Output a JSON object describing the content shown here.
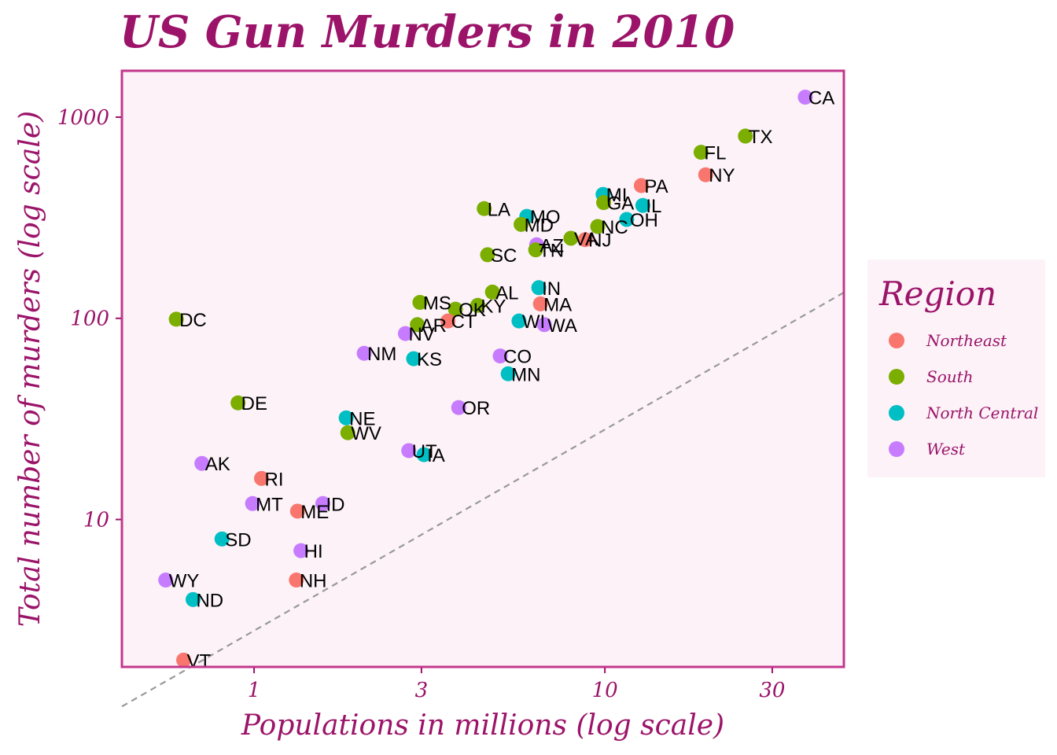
{
  "chart_data": {
    "type": "scatter",
    "title": "US Gun Murders in 2010",
    "xlabel": "Populations in millions (log scale)",
    "ylabel": "Total number of murders (log scale)",
    "x_scale": "log10",
    "y_scale": "log10",
    "xlim": [
      0.42,
      48
    ],
    "ylim": [
      1.85,
      1700
    ],
    "x_ticks": [
      1,
      3,
      10,
      30
    ],
    "x_tick_labels": [
      "1",
      "3",
      "10",
      "30"
    ],
    "y_ticks": [
      10,
      100,
      1000
    ],
    "y_tick_labels": [
      "10",
      "100",
      "1000"
    ],
    "grid": false,
    "trend_line": {
      "style": "dashed",
      "color": "#999999",
      "rate_per_million": 2.8
    },
    "legend": {
      "title": "Region",
      "position": "right",
      "entries": [
        {
          "label": "Northeast",
          "color": "#F8766D"
        },
        {
          "label": "South",
          "color": "#7CAE00"
        },
        {
          "label": "North Central",
          "color": "#00BFC4"
        },
        {
          "label": "West",
          "color": "#C77CFF"
        }
      ]
    },
    "region_colors": {
      "Northeast": "#F8766D",
      "South": "#7CAE00",
      "North Central": "#00BFC4",
      "West": "#C77CFF"
    },
    "points": [
      {
        "label": "CA",
        "region": "West",
        "population": 37.25,
        "murders": 1257
      },
      {
        "label": "TX",
        "region": "South",
        "population": 25.15,
        "murders": 805
      },
      {
        "label": "FL",
        "region": "South",
        "population": 18.8,
        "murders": 669
      },
      {
        "label": "NY",
        "region": "Northeast",
        "population": 19.38,
        "murders": 517
      },
      {
        "label": "PA",
        "region": "Northeast",
        "population": 12.7,
        "murders": 457
      },
      {
        "label": "MI",
        "region": "North Central",
        "population": 9.88,
        "murders": 413
      },
      {
        "label": "GA",
        "region": "South",
        "population": 9.92,
        "murders": 376
      },
      {
        "label": "IL",
        "region": "North Central",
        "population": 12.83,
        "murders": 364
      },
      {
        "label": "OH",
        "region": "North Central",
        "population": 11.54,
        "murders": 310
      },
      {
        "label": "LA",
        "region": "South",
        "population": 4.53,
        "murders": 351
      },
      {
        "label": "MO",
        "region": "North Central",
        "population": 5.99,
        "murders": 321
      },
      {
        "label": "MD",
        "region": "South",
        "population": 5.77,
        "murders": 293
      },
      {
        "label": "NC",
        "region": "South",
        "population": 9.54,
        "murders": 286
      },
      {
        "label": "VA",
        "region": "South",
        "population": 8.0,
        "murders": 250
      },
      {
        "label": "NJ",
        "region": "Northeast",
        "population": 8.79,
        "murders": 246
      },
      {
        "label": "AZ",
        "region": "West",
        "population": 6.39,
        "murders": 232
      },
      {
        "label": "TN",
        "region": "South",
        "population": 6.35,
        "murders": 219
      },
      {
        "label": "SC",
        "region": "South",
        "population": 4.63,
        "murders": 207
      },
      {
        "label": "IN",
        "region": "North Central",
        "population": 6.48,
        "murders": 142
      },
      {
        "label": "AL",
        "region": "South",
        "population": 4.78,
        "murders": 135
      },
      {
        "label": "MA",
        "region": "Northeast",
        "population": 6.55,
        "murders": 118
      },
      {
        "label": "MS",
        "region": "South",
        "population": 2.97,
        "murders": 120
      },
      {
        "label": "KY",
        "region": "South",
        "population": 4.34,
        "murders": 116
      },
      {
        "label": "OK",
        "region": "South",
        "population": 3.75,
        "murders": 111
      },
      {
        "label": "WI",
        "region": "North Central",
        "population": 5.69,
        "murders": 97
      },
      {
        "label": "WA",
        "region": "West",
        "population": 6.72,
        "murders": 93
      },
      {
        "label": "CT",
        "region": "Northeast",
        "population": 3.57,
        "murders": 97
      },
      {
        "label": "AR",
        "region": "South",
        "population": 2.92,
        "murders": 93
      },
      {
        "label": "NV",
        "region": "West",
        "population": 2.7,
        "murders": 84
      },
      {
        "label": "DC",
        "region": "South",
        "population": 0.6,
        "murders": 99
      },
      {
        "label": "NM",
        "region": "West",
        "population": 2.06,
        "murders": 67
      },
      {
        "label": "KS",
        "region": "North Central",
        "population": 2.85,
        "murders": 63
      },
      {
        "label": "CO",
        "region": "West",
        "population": 5.03,
        "murders": 65
      },
      {
        "label": "MN",
        "region": "North Central",
        "population": 5.3,
        "murders": 53
      },
      {
        "label": "DE",
        "region": "South",
        "population": 0.9,
        "murders": 38
      },
      {
        "label": "OR",
        "region": "West",
        "population": 3.83,
        "murders": 36
      },
      {
        "label": "NE",
        "region": "North Central",
        "population": 1.83,
        "murders": 32
      },
      {
        "label": "WV",
        "region": "South",
        "population": 1.85,
        "murders": 27
      },
      {
        "label": "UT",
        "region": "West",
        "population": 2.76,
        "murders": 22
      },
      {
        "label": "IA",
        "region": "North Central",
        "population": 3.05,
        "murders": 21
      },
      {
        "label": "AK",
        "region": "West",
        "population": 0.71,
        "murders": 19
      },
      {
        "label": "RI",
        "region": "Northeast",
        "population": 1.05,
        "murders": 16
      },
      {
        "label": "MT",
        "region": "West",
        "population": 0.99,
        "murders": 12
      },
      {
        "label": "ME",
        "region": "Northeast",
        "population": 1.33,
        "murders": 11
      },
      {
        "label": "ID",
        "region": "West",
        "population": 1.57,
        "murders": 12
      },
      {
        "label": "SD",
        "region": "North Central",
        "population": 0.81,
        "murders": 8
      },
      {
        "label": "HI",
        "region": "West",
        "population": 1.36,
        "murders": 7
      },
      {
        "label": "WY",
        "region": "West",
        "population": 0.56,
        "murders": 5
      },
      {
        "label": "NH",
        "region": "Northeast",
        "population": 1.32,
        "murders": 5
      },
      {
        "label": "ND",
        "region": "North Central",
        "population": 0.67,
        "murders": 4
      },
      {
        "label": "VT",
        "region": "Northeast",
        "population": 0.63,
        "murders": 2
      }
    ]
  }
}
